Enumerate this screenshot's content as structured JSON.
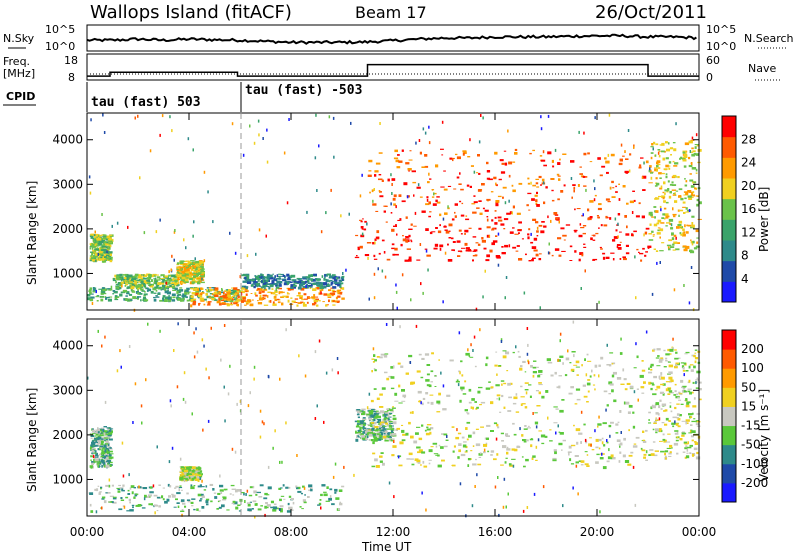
{
  "header": {
    "station": "Wallops Island (fitACF)",
    "beam": "Beam 17",
    "date": "26/Oct/2011"
  },
  "nsky_panel": {
    "left_label": "N.Sky",
    "right_label": "N.Search",
    "left_ticks": [
      "10^5",
      "10^0"
    ],
    "right_ticks": [
      "10^5",
      "10^0"
    ]
  },
  "freq_panel": {
    "left_label": "Freq.",
    "left_unit": "[MHz]",
    "right_label": "Nave",
    "left_ticks": [
      "18",
      "8"
    ],
    "right_ticks": [
      "60",
      "0"
    ]
  },
  "cpid": {
    "label": "CPID",
    "segments": [
      {
        "text": "tau (fast) 503"
      },
      {
        "text": "tau (fast) -503"
      }
    ]
  },
  "x_axis": {
    "label": "Time UT",
    "ticks": [
      "00:00",
      "04:00",
      "08:00",
      "12:00",
      "16:00",
      "20:00",
      "00:00"
    ],
    "range_hours": [
      0,
      24
    ]
  },
  "power_panel": {
    "ylabel": "Slant Range [km]",
    "yticks": [
      "1000",
      "2000",
      "3000",
      "4000"
    ],
    "colorbar_label": "Power [dB]",
    "colorbar_ticks": [
      "4",
      "8",
      "12",
      "16",
      "20",
      "24",
      "28"
    ],
    "colors": [
      "#1a1aff",
      "#1f4aa8",
      "#2e8a8a",
      "#3aa36a",
      "#6ac24a",
      "#f0d020",
      "#ff9a00",
      "#ff5a00",
      "#ff0000"
    ]
  },
  "velocity_panel": {
    "ylabel": "Slant Range [km]",
    "yticks": [
      "1000",
      "2000",
      "3000",
      "4000"
    ],
    "colorbar_label": "Velocity [m s⁻¹]",
    "colorbar_ticks": [
      "200",
      "100",
      "50",
      "15",
      "-15",
      "-50",
      "-100",
      "-200"
    ],
    "colors": [
      "#1a1aff",
      "#1f4aa8",
      "#2e8a8a",
      "#5ac83a",
      "#c8c8c0",
      "#f0d020",
      "#ff9a00",
      "#ff5a00",
      "#ff0000"
    ]
  },
  "chart_data": [
    {
      "type": "line",
      "name": "N.Sky",
      "x_range": [
        0,
        24
      ],
      "y_scale": "log",
      "ylim_labels": [
        "10^0",
        "10^5"
      ],
      "x": [
        0,
        1,
        2,
        3,
        4,
        5,
        6,
        7,
        8,
        9,
        10,
        11,
        12,
        13,
        14,
        15,
        16,
        17,
        18,
        19,
        20,
        21,
        22,
        23,
        24
      ],
      "y": [
        0.4,
        0.4,
        0.45,
        0.4,
        0.45,
        0.42,
        0.4,
        0.35,
        0.3,
        0.3,
        0.3,
        0.32,
        0.38,
        0.45,
        0.5,
        0.5,
        0.55,
        0.55,
        0.55,
        0.58,
        0.6,
        0.6,
        0.55,
        0.55,
        0.5
      ]
    },
    {
      "type": "line",
      "name": "Freq.",
      "unit": "MHz",
      "x_range": [
        0,
        24
      ],
      "ylim": [
        8,
        18
      ],
      "x": [
        0,
        0.9,
        0.9,
        5.9,
        5.9,
        11.0,
        11.0,
        22.0,
        22.0,
        24
      ],
      "y": [
        9.2,
        9.2,
        10.8,
        10.8,
        9.2,
        9.2,
        14.0,
        14.0,
        9.2,
        9.2
      ]
    },
    {
      "type": "heatmap",
      "quantity": "Power [dB]",
      "x_range": [
        0,
        24
      ],
      "ylim": [
        180,
        4600
      ],
      "blobs": [
        {
          "x0": 0.1,
          "x1": 0.9,
          "y0": 1300,
          "y1": 1900,
          "level": 4
        },
        {
          "x0": 0.0,
          "x1": 6.0,
          "y0": 400,
          "y1": 700,
          "level": 3
        },
        {
          "x0": 1.0,
          "x1": 3.5,
          "y0": 700,
          "y1": 1000,
          "level": 4
        },
        {
          "x0": 3.5,
          "x1": 4.5,
          "y0": 800,
          "y1": 1300,
          "level": 5
        },
        {
          "x0": 4.0,
          "x1": 10.0,
          "y0": 300,
          "y1": 700,
          "level": 6
        },
        {
          "x0": 6.0,
          "x1": 10.0,
          "y0": 700,
          "y1": 1000,
          "level": 2
        },
        {
          "x0": 10.5,
          "x1": 22.0,
          "y0": 1300,
          "y1": 2300,
          "level": 8
        },
        {
          "x0": 11.0,
          "x1": 22.0,
          "y0": 2300,
          "y1": 3800,
          "level": 7
        },
        {
          "x0": 22.0,
          "x1": 24.0,
          "y0": 1500,
          "y1": 4000,
          "level": 5
        }
      ]
    },
    {
      "type": "heatmap",
      "quantity": "Velocity [m s⁻¹]",
      "x_range": [
        0,
        24
      ],
      "ylim": [
        180,
        4600
      ],
      "blobs": [
        {
          "x0": 0.1,
          "x1": 0.9,
          "y0": 1300,
          "y1": 2200,
          "level": 3
        },
        {
          "x0": 0.0,
          "x1": 10.0,
          "y0": 300,
          "y1": 900,
          "level": 3
        },
        {
          "x0": 3.6,
          "x1": 4.4,
          "y0": 1000,
          "y1": 1300,
          "level": 4
        },
        {
          "x0": 10.5,
          "x1": 12.0,
          "y0": 1900,
          "y1": 2600,
          "level": 3
        },
        {
          "x0": 11.0,
          "x1": 22.0,
          "y0": 1300,
          "y1": 2300,
          "level": 4
        },
        {
          "x0": 11.0,
          "x1": 22.0,
          "y0": 2500,
          "y1": 3900,
          "level": 4
        },
        {
          "x0": 22.0,
          "x1": 24.0,
          "y0": 1500,
          "y1": 4000,
          "level": 4
        }
      ]
    }
  ]
}
